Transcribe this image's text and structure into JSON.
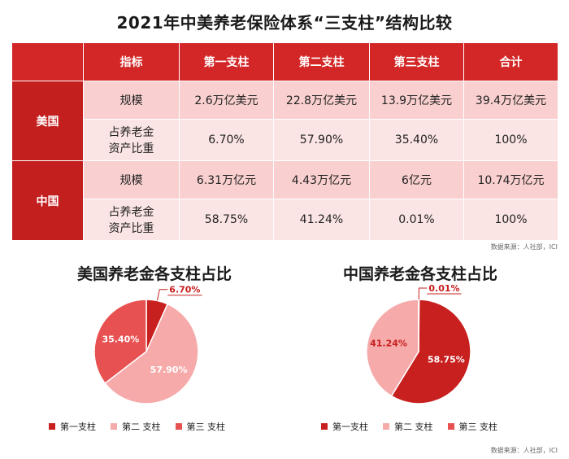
{
  "title": "2021年中美养老保险体系“三支柱”结构比较",
  "table": {
    "headers": [
      "",
      "指标",
      "第一支柱",
      "第二支柱",
      "第三支柱",
      "合计"
    ],
    "regions": [
      {
        "name": "美国",
        "rows": [
          {
            "metric": "规模",
            "pillar1": "2.6万亿美元",
            "pillar2": "22.8万亿美元",
            "pillar3": "13.9万亿美元",
            "total": "39.4万亿美元"
          },
          {
            "metric_line1": "占养老金",
            "metric_line2": "资产比重",
            "pillar1": "6.70%",
            "pillar2": "57.90%",
            "pillar3": "35.40%",
            "total": "100%"
          }
        ]
      },
      {
        "name": "中国",
        "rows": [
          {
            "metric": "规模",
            "pillar1": "6.31万亿元",
            "pillar2": "4.43万亿元",
            "pillar3": "6亿元",
            "total": "10.74万亿元"
          },
          {
            "metric_line1": "占养老金",
            "metric_line2": "资产比重",
            "pillar1": "58.75%",
            "pillar2": "41.24%",
            "pillar3": "0.01%",
            "total": "100%"
          }
        ]
      }
    ],
    "source": "数据来源：人社部，ICI"
  },
  "chart_data": [
    {
      "type": "pie",
      "title": "美国养老金各支柱占比",
      "categories": [
        "第一支柱",
        "第二 支柱",
        "第三 支柱"
      ],
      "values": [
        6.7,
        57.9,
        35.4
      ],
      "labels": [
        "6.70%",
        "57.90%",
        "35.40%"
      ],
      "colors": [
        "#c7201f",
        "#f6aaaa",
        "#e85151"
      ],
      "legend": "bottom"
    },
    {
      "type": "pie",
      "title": "中国养老金各支柱占比",
      "categories": [
        "第一支柱",
        "第二 支柱",
        "第三 支柱"
      ],
      "values": [
        58.75,
        41.24,
        0.01
      ],
      "labels": [
        "58.75%",
        "41.24%",
        "0.01%"
      ],
      "colors": [
        "#c7201f",
        "#f6aaaa",
        "#e85151"
      ],
      "legend": "bottom"
    }
  ],
  "chart_source": "数据来源：人社部，ICI"
}
